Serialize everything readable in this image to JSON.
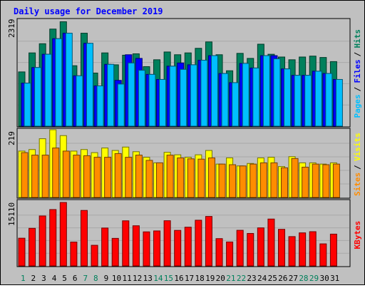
{
  "chart_data": [
    {
      "type": "bar",
      "panel": "hits",
      "title": "Daily usage for December 2019",
      "ymax_label": "2319",
      "ylim": [
        0,
        2319
      ],
      "categories": [
        "1",
        "2",
        "3",
        "4",
        "5",
        "6",
        "7",
        "8",
        "9",
        "10",
        "11",
        "12",
        "13",
        "14",
        "15",
        "16",
        "17",
        "18",
        "19",
        "20",
        "21",
        "22",
        "23",
        "24",
        "25",
        "26",
        "27",
        "28",
        "29",
        "30",
        "31"
      ],
      "side_labels": [
        {
          "text": "Pages",
          "color": "#00bfff"
        },
        {
          "text": "Files",
          "color": "#0000ff"
        },
        {
          "text": "Hits",
          "color": "#00805c"
        }
      ],
      "series": [
        {
          "name": "Hits",
          "color": "#00805c",
          "values": [
            1185,
            1600,
            1800,
            2120,
            2280,
            1320,
            2030,
            1160,
            1600,
            1340,
            1550,
            1580,
            1300,
            1450,
            1620,
            1560,
            1600,
            1700,
            1840,
            1560,
            1210,
            1590,
            1480,
            1790,
            1570,
            1510,
            1450,
            1510,
            1530,
            1500,
            1410
          ]
        },
        {
          "name": "Files",
          "color": "#0000ff",
          "values": [
            940,
            1280,
            1570,
            1910,
            2030,
            1100,
            1810,
            880,
            1350,
            1000,
            1560,
            1480,
            1130,
            1020,
            1310,
            1380,
            1340,
            1440,
            1540,
            1150,
            950,
            1370,
            1270,
            1540,
            1540,
            1250,
            1110,
            1110,
            1200,
            1150,
            1020
          ]
        },
        {
          "name": "Pages",
          "color": "#00bfff",
          "values": [
            940,
            1280,
            1570,
            1910,
            2030,
            1100,
            1810,
            880,
            1350,
            920,
            1380,
            1220,
            1130,
            1020,
            1310,
            1240,
            1340,
            1440,
            1540,
            1150,
            950,
            1370,
            1270,
            1540,
            1470,
            1250,
            1110,
            1110,
            1200,
            1150,
            1020
          ]
        }
      ]
    },
    {
      "type": "bar",
      "panel": "visits",
      "ymax_label": "219",
      "ylim": [
        0,
        219
      ],
      "categories": [
        "1",
        "2",
        "3",
        "4",
        "5",
        "6",
        "7",
        "8",
        "9",
        "10",
        "11",
        "12",
        "13",
        "14",
        "15",
        "16",
        "17",
        "18",
        "19",
        "20",
        "21",
        "22",
        "23",
        "24",
        "25",
        "26",
        "27",
        "28",
        "29",
        "30",
        "31"
      ],
      "side_labels": [
        {
          "text": "Sites",
          "color": "#ff8c00"
        },
        {
          "text": "Visits",
          "color": "#ffff00"
        }
      ],
      "series": [
        {
          "name": "Visits",
          "color": "#ffff00",
          "values": [
            150,
            155,
            190,
            219,
            200,
            150,
            155,
            145,
            160,
            152,
            163,
            148,
            130,
            112,
            146,
            138,
            130,
            138,
            152,
            108,
            128,
            102,
            110,
            128,
            130,
            100,
            132,
            112,
            112,
            108,
            112
          ]
        },
        {
          "name": "Sites",
          "color": "#ff8c00",
          "values": [
            145,
            137,
            137,
            160,
            150,
            137,
            135,
            130,
            130,
            142,
            130,
            137,
            120,
            112,
            137,
            128,
            125,
            124,
            128,
            108,
            106,
            102,
            108,
            112,
            112,
            96,
            126,
            98,
            108,
            106,
            108
          ]
        }
      ]
    },
    {
      "type": "bar",
      "panel": "kbytes",
      "ymax_label": "15110",
      "ylim": [
        0,
        15110
      ],
      "categories": [
        "1",
        "2",
        "3",
        "4",
        "5",
        "6",
        "7",
        "8",
        "9",
        "10",
        "11",
        "12",
        "13",
        "14",
        "15",
        "16",
        "17",
        "18",
        "19",
        "20",
        "21",
        "22",
        "23",
        "24",
        "25",
        "26",
        "27",
        "28",
        "29",
        "30",
        "31"
      ],
      "weekend_days": [
        "1",
        "7",
        "8",
        "14",
        "15",
        "21",
        "22",
        "28",
        "29"
      ],
      "side_labels": [
        {
          "text": "KBytes",
          "color": "#ff0000"
        }
      ],
      "series": [
        {
          "name": "KBytes",
          "color": "#ff0000",
          "values": [
            6600,
            8950,
            11900,
            13420,
            15110,
            5680,
            13210,
            4910,
            9020,
            6560,
            10740,
            9560,
            8110,
            8330,
            10760,
            8460,
            9220,
            10880,
            11780,
            6500,
            5700,
            8480,
            7730,
            9060,
            11160,
            8710,
            6980,
            7870,
            8150,
            5250,
            7570
          ]
        }
      ]
    }
  ]
}
